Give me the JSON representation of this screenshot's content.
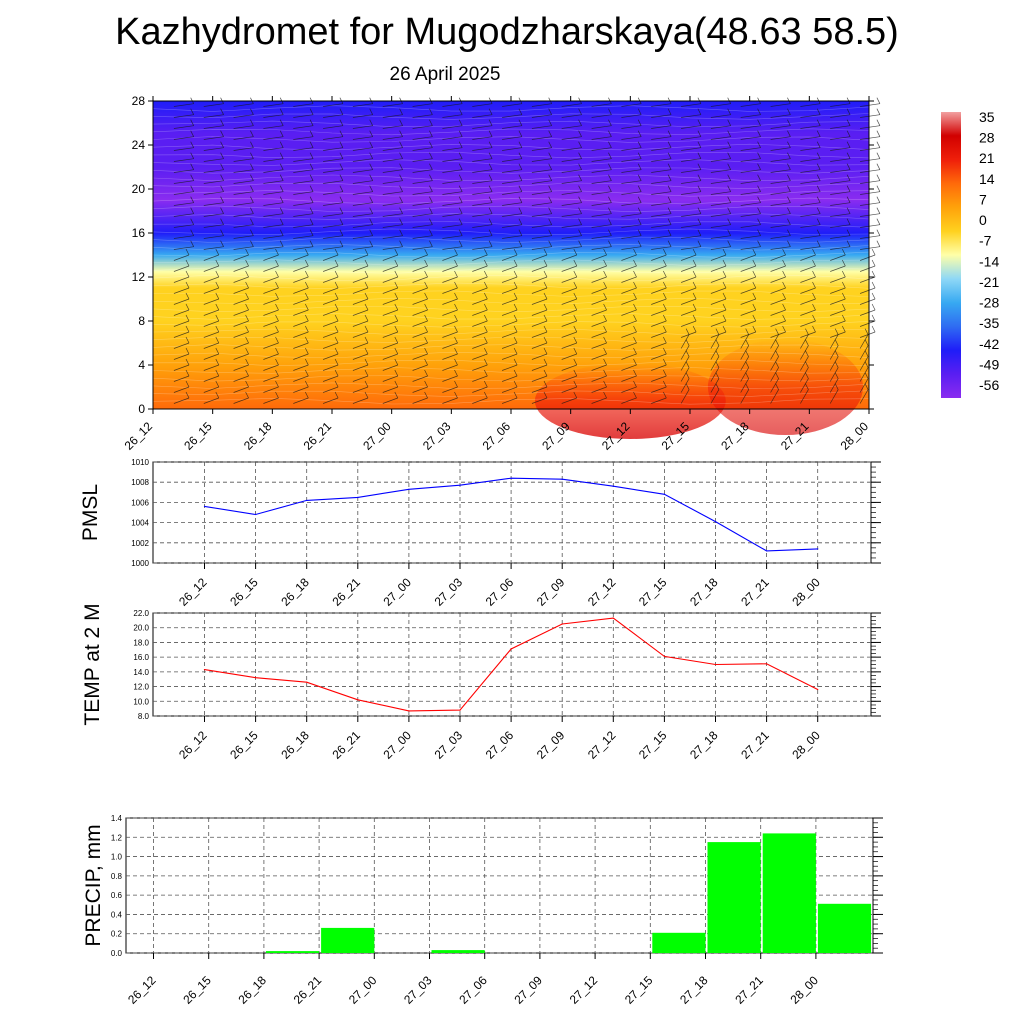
{
  "header": {
    "title": "Kazhydromet for Mugodzharskaya(48.63 58.5)",
    "date": "26 April 2025"
  },
  "time_labels": [
    "26_12",
    "26_15",
    "26_18",
    "26_21",
    "27_00",
    "27_03",
    "27_06",
    "27_09",
    "27_12",
    "27_15",
    "27_18",
    "27_21",
    "28_00"
  ],
  "colors": {
    "pmsl_line": "#0000ff",
    "temp_line": "#ff0000",
    "precip_bar": "#00ff00",
    "contour_scale": [
      "#8a2cf0",
      "#5a1ef2",
      "#1f1df8",
      "#2f6cf2",
      "#37a9f2",
      "#8fd8f6",
      "#ffffa8",
      "#ffd21f",
      "#ffa20a",
      "#ff6a0a",
      "#ef1f0a",
      "#d10000",
      "#f2a0a0"
    ]
  },
  "chart_data": [
    {
      "type": "heatmap",
      "name": "cross-section",
      "x": [
        "26_12",
        "26_15",
        "26_18",
        "26_21",
        "27_00",
        "27_03",
        "27_06",
        "27_09",
        "27_12",
        "27_15",
        "27_18",
        "27_21",
        "28_00"
      ],
      "yticks": [
        "0",
        "4",
        "8",
        "12",
        "16",
        "20",
        "24",
        "28"
      ],
      "ylim": [
        0,
        28
      ],
      "colorbar_labels": [
        "35",
        "28",
        "21",
        "14",
        "7",
        "0",
        "-7",
        "-14",
        "-21",
        "-28",
        "-35",
        "-42",
        "-49",
        "-56"
      ],
      "colorbar_range": [
        -63,
        42
      ],
      "temperature_bands": [
        {
          "level": 0,
          "temp": 14
        },
        {
          "level": 4,
          "temp": 9
        },
        {
          "level": 8,
          "temp": 1
        },
        {
          "level": 11,
          "temp": -6
        },
        {
          "level": 12.5,
          "temp": -14
        },
        {
          "level": 14,
          "temp": -30
        },
        {
          "level": 16,
          "temp": -44
        },
        {
          "level": 19,
          "temp": -62
        },
        {
          "level": 22,
          "temp": -56
        },
        {
          "level": 25,
          "temp": -52
        },
        {
          "level": 28,
          "temp": -48
        }
      ]
    },
    {
      "type": "line",
      "name": "pmsl",
      "ylabel": "PMSL",
      "x": [
        "26_12",
        "26_15",
        "26_18",
        "26_21",
        "27_00",
        "27_03",
        "27_06",
        "27_09",
        "27_12",
        "27_15",
        "27_18",
        "27_21",
        "28_00"
      ],
      "values": [
        1005.6,
        1004.8,
        1006.2,
        1006.5,
        1007.3,
        1007.7,
        1008.4,
        1008.3,
        1007.6,
        1006.8,
        1004.1,
        1001.2,
        1001.4
      ],
      "yticks": [
        "1000",
        "1002",
        "1004",
        "1006",
        "1008",
        "1010"
      ],
      "ylim": [
        1000,
        1010
      ]
    },
    {
      "type": "line",
      "name": "temp2m",
      "ylabel": "TEMP at 2 M",
      "x": [
        "26_12",
        "26_15",
        "26_18",
        "26_21",
        "27_00",
        "27_03",
        "27_06",
        "27_09",
        "27_12",
        "27_15",
        "27_18",
        "27_21",
        "28_00"
      ],
      "values": [
        14.3,
        13.2,
        12.6,
        10.2,
        8.7,
        8.8,
        17.1,
        20.5,
        21.3,
        16.1,
        15.0,
        15.1,
        11.6
      ],
      "yticks": [
        "8.0",
        "10.0",
        "12.0",
        "14.0",
        "16.0",
        "18.0",
        "20.0",
        "22.0"
      ],
      "ylim": [
        8,
        22
      ]
    },
    {
      "type": "bar",
      "name": "precip",
      "ylabel": "PRECIP, mm",
      "categories": [
        "26_12",
        "26_15",
        "26_18",
        "26_21",
        "27_00",
        "27_03",
        "27_06",
        "27_09",
        "27_12",
        "27_15",
        "27_18",
        "27_21",
        "28_00"
      ],
      "values": [
        0,
        0,
        0.02,
        0.26,
        0,
        0.03,
        0,
        0,
        0,
        0.21,
        1.15,
        1.24,
        0.51
      ],
      "yticks": [
        "0.0",
        "0.2",
        "0.4",
        "0.6",
        "0.8",
        "1.0",
        "1.2",
        "1.4"
      ],
      "ylim": [
        0,
        1.4
      ]
    }
  ]
}
